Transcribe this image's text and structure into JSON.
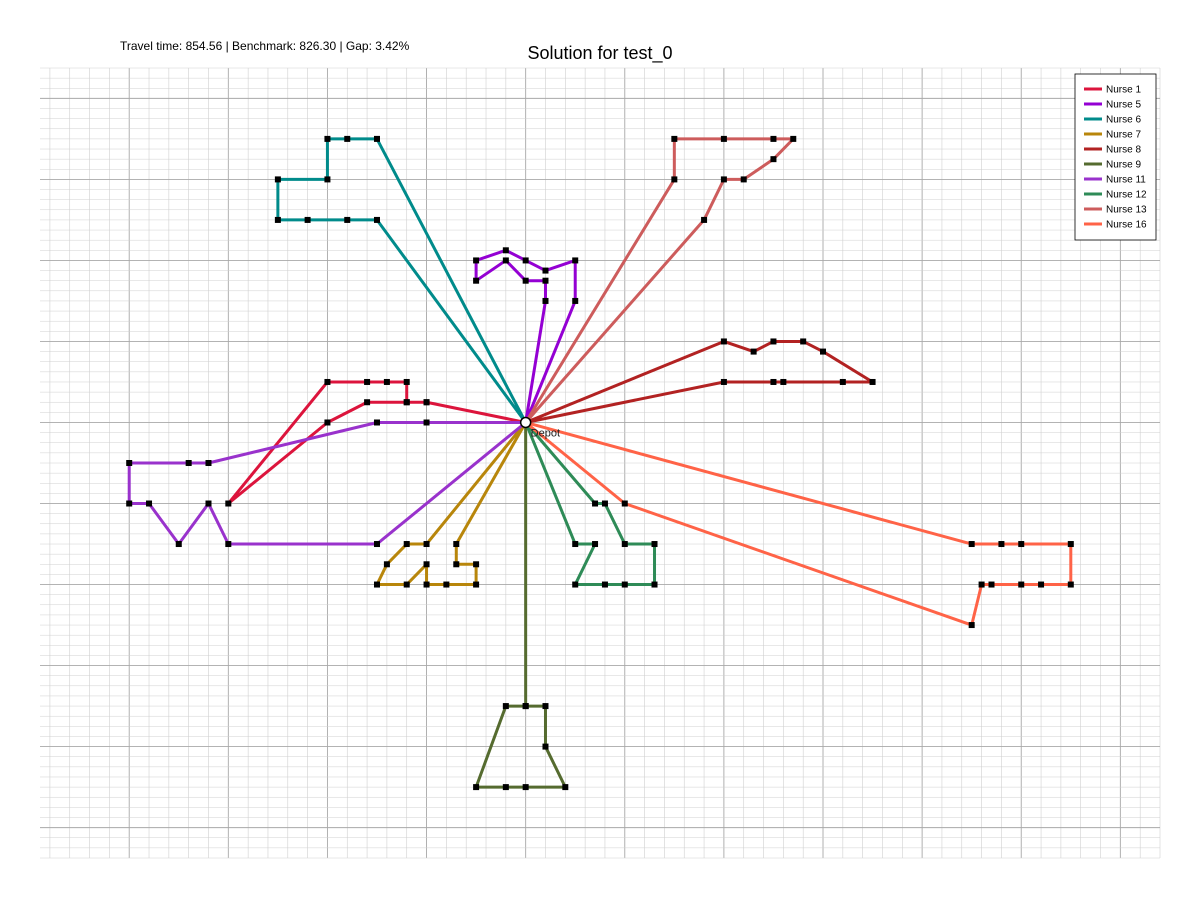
{
  "header": {
    "stats": "Travel time: 854.56 | Benchmark: 826.30 | Gap: 3.42%",
    "title": "Solution for test_0"
  },
  "chart_data": {
    "type": "line",
    "title": "Solution for test_0",
    "xlim": [
      -24.5,
      32
    ],
    "ylim": [
      -21.5,
      17.5
    ],
    "grid": true,
    "legend_position": "top-right",
    "depot": {
      "label": "Depot",
      "x": 0,
      "y": 0
    },
    "series": [
      {
        "name": "Nurse 1",
        "color": "#dc143c",
        "route": [
          [
            0,
            0
          ],
          [
            -5,
            1
          ],
          [
            -6,
            1
          ],
          [
            -8,
            1
          ],
          [
            -10,
            0
          ],
          [
            -15,
            -4
          ],
          [
            -10,
            2
          ],
          [
            -8,
            2
          ],
          [
            -7,
            2
          ],
          [
            -6,
            2
          ],
          [
            -6,
            1
          ],
          [
            -5,
            1
          ],
          [
            0,
            0
          ]
        ]
      },
      {
        "name": "Nurse 5",
        "color": "#9400d3",
        "route": [
          [
            0,
            0
          ],
          [
            1,
            6
          ],
          [
            1,
            7
          ],
          [
            0,
            7
          ],
          [
            -1,
            8
          ],
          [
            -2.5,
            7
          ],
          [
            -2.5,
            8
          ],
          [
            -1,
            8.5
          ],
          [
            0,
            8
          ],
          [
            1,
            7.5
          ],
          [
            2.5,
            8
          ],
          [
            2.5,
            6
          ],
          [
            0,
            0
          ]
        ]
      },
      {
        "name": "Nurse 6",
        "color": "#008b8b",
        "route": [
          [
            0,
            0
          ],
          [
            -7.5,
            10
          ],
          [
            -9,
            10
          ],
          [
            -11,
            10
          ],
          [
            -12.5,
            10
          ],
          [
            -12.5,
            12
          ],
          [
            -10,
            12
          ],
          [
            -10,
            14
          ],
          [
            -9,
            14
          ],
          [
            -7.5,
            14
          ],
          [
            0,
            0
          ]
        ]
      },
      {
        "name": "Nurse 7",
        "color": "#b8860b",
        "route": [
          [
            0,
            0
          ],
          [
            -5,
            -6
          ],
          [
            -6,
            -6
          ],
          [
            -7,
            -7
          ],
          [
            -7.5,
            -8
          ],
          [
            -6,
            -8
          ],
          [
            -5,
            -7
          ],
          [
            -5,
            -8
          ],
          [
            -4,
            -8
          ],
          [
            -2.5,
            -8
          ],
          [
            -2.5,
            -7
          ],
          [
            -3.5,
            -7
          ],
          [
            -3.5,
            -6
          ],
          [
            0,
            0
          ]
        ]
      },
      {
        "name": "Nurse 8",
        "color": "#b22222",
        "route": [
          [
            0,
            0
          ],
          [
            10,
            4
          ],
          [
            11.5,
            3.5
          ],
          [
            12.5,
            4
          ],
          [
            14,
            4
          ],
          [
            15,
            3.5
          ],
          [
            17.5,
            2
          ],
          [
            16,
            2
          ],
          [
            13,
            2
          ],
          [
            12.5,
            2
          ],
          [
            10,
            2
          ],
          [
            0,
            0
          ]
        ]
      },
      {
        "name": "Nurse 9",
        "color": "#556b2f",
        "route": [
          [
            0,
            0
          ],
          [
            0,
            -14
          ],
          [
            1,
            -14
          ],
          [
            1,
            -16
          ],
          [
            2,
            -18
          ],
          [
            0,
            -18
          ],
          [
            -1,
            -18
          ],
          [
            -2.5,
            -18
          ],
          [
            -1,
            -14
          ],
          [
            0,
            -14
          ],
          [
            0,
            0
          ]
        ]
      },
      {
        "name": "Nurse 11",
        "color": "#9932cc",
        "route": [
          [
            0,
            0
          ],
          [
            -5,
            0
          ],
          [
            -7.5,
            0
          ],
          [
            -16,
            -2
          ],
          [
            -17,
            -2
          ],
          [
            -20,
            -2
          ],
          [
            -20,
            -4
          ],
          [
            -19,
            -4
          ],
          [
            -17.5,
            -6
          ],
          [
            -16,
            -4
          ],
          [
            -15,
            -6
          ],
          [
            -7.5,
            -6
          ],
          [
            0,
            0
          ]
        ]
      },
      {
        "name": "Nurse 12",
        "color": "#2e8b57",
        "route": [
          [
            0,
            0
          ],
          [
            3.5,
            -4
          ],
          [
            4,
            -4
          ],
          [
            5,
            -6
          ],
          [
            6.5,
            -6
          ],
          [
            6.5,
            -8
          ],
          [
            5,
            -8
          ],
          [
            4,
            -8
          ],
          [
            2.5,
            -8
          ],
          [
            3.5,
            -6
          ],
          [
            2.5,
            -6
          ],
          [
            0,
            0
          ]
        ]
      },
      {
        "name": "Nurse 13",
        "color": "#cd5c5c",
        "route": [
          [
            0,
            0
          ],
          [
            9,
            10
          ],
          [
            10,
            12
          ],
          [
            11,
            12
          ],
          [
            12.5,
            13
          ],
          [
            13.5,
            14
          ],
          [
            12.5,
            14
          ],
          [
            10,
            14
          ],
          [
            7.5,
            14
          ],
          [
            7.5,
            12
          ],
          [
            0,
            0
          ]
        ]
      },
      {
        "name": "Nurse 16",
        "color": "#ff6347",
        "route": [
          [
            0,
            0
          ],
          [
            22.5,
            -6
          ],
          [
            24,
            -6
          ],
          [
            25,
            -6
          ],
          [
            27.5,
            -6
          ],
          [
            27.5,
            -8
          ],
          [
            26,
            -8
          ],
          [
            25,
            -8
          ],
          [
            23.5,
            -8
          ],
          [
            23,
            -8
          ],
          [
            22.5,
            -10
          ],
          [
            5,
            -4
          ],
          [
            0,
            0
          ]
        ]
      }
    ]
  }
}
